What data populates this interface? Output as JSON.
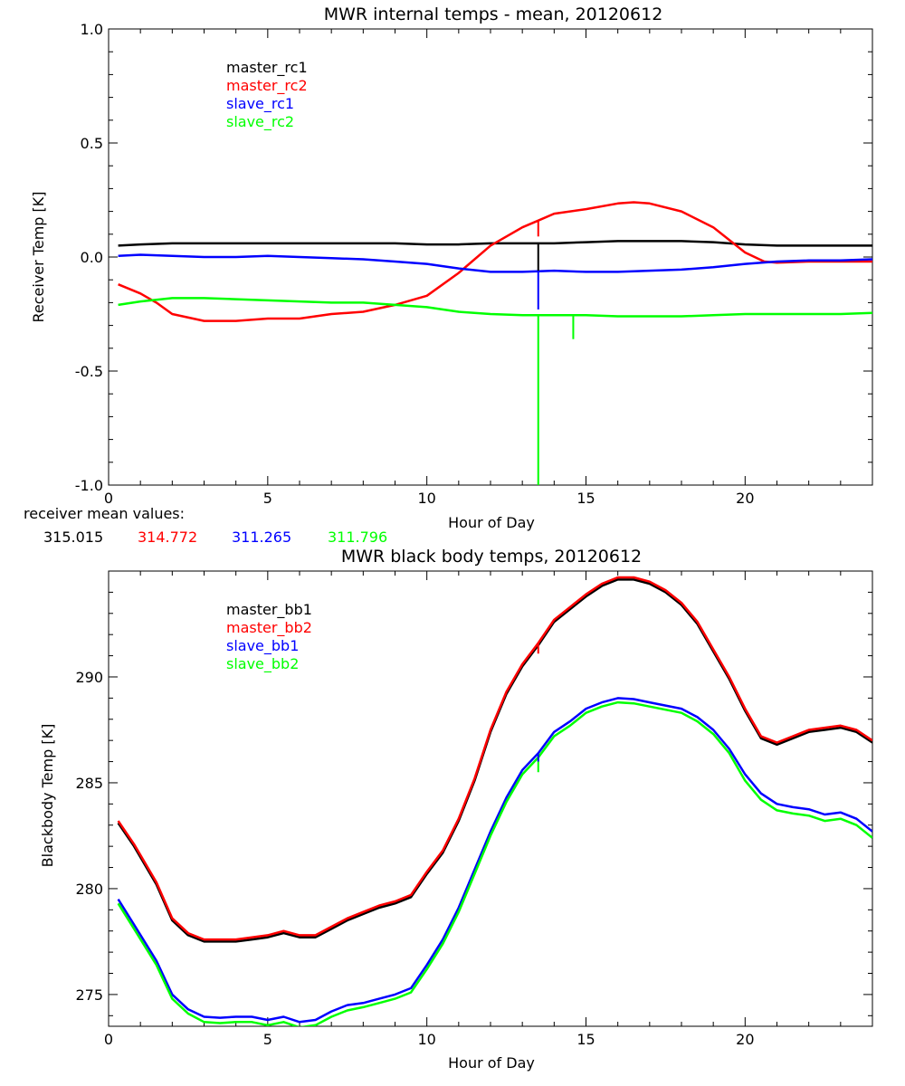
{
  "chart_data": [
    {
      "type": "line",
      "title": "MWR internal temps - mean, 20120612",
      "xlabel": "Hour of Day",
      "ylabel": "Receiver Temp [K]",
      "xlim": [
        0,
        24
      ],
      "ylim": [
        -1.0,
        1.0
      ],
      "xticks": [
        0,
        5,
        10,
        15,
        20
      ],
      "yticks": [
        1.0,
        0.5,
        0.0,
        -0.5,
        -1.0
      ],
      "ytick_labels": [
        "1.0",
        "0.5",
        "0.0",
        "-0.5",
        "-1.0"
      ],
      "legend_position": "top-left",
      "grid": false,
      "series": [
        {
          "name": "master_rc1",
          "color": "#000000",
          "x": [
            0.3,
            1,
            2,
            3,
            4,
            5,
            6,
            7,
            8,
            9,
            10,
            11,
            12,
            13,
            14,
            15,
            16,
            17,
            18,
            19,
            20,
            21,
            22,
            23,
            24
          ],
          "y": [
            0.05,
            0.055,
            0.06,
            0.06,
            0.06,
            0.06,
            0.06,
            0.06,
            0.06,
            0.06,
            0.055,
            0.055,
            0.06,
            0.06,
            0.06,
            0.065,
            0.07,
            0.07,
            0.07,
            0.065,
            0.055,
            0.05,
            0.05,
            0.05,
            0.05
          ]
        },
        {
          "name": "master_rc2",
          "color": "#ff0000",
          "x": [
            0.3,
            1,
            1.5,
            2,
            3,
            4,
            5,
            6,
            7,
            8,
            9,
            10,
            11,
            12,
            13,
            13.5,
            14,
            15,
            16,
            16.5,
            17,
            18,
            19,
            20,
            20.6,
            21,
            22,
            23,
            24
          ],
          "y": [
            -0.12,
            -0.16,
            -0.2,
            -0.25,
            -0.28,
            -0.28,
            -0.27,
            -0.27,
            -0.25,
            -0.24,
            -0.21,
            -0.17,
            -0.07,
            0.05,
            0.13,
            0.16,
            0.19,
            0.21,
            0.235,
            0.24,
            0.235,
            0.2,
            0.13,
            0.02,
            -0.02,
            -0.025,
            -0.02,
            -0.02,
            -0.02
          ]
        },
        {
          "name": "slave_rc1",
          "color": "#0000ff",
          "x": [
            0.3,
            1,
            2,
            3,
            4,
            5,
            6,
            7,
            8,
            9,
            10,
            11,
            12,
            13,
            14,
            15,
            16,
            17,
            18,
            19,
            20,
            21,
            22,
            23,
            24
          ],
          "y": [
            0.005,
            0.01,
            0.005,
            0.0,
            0.0,
            0.005,
            0.0,
            -0.005,
            -0.01,
            -0.02,
            -0.03,
            -0.05,
            -0.065,
            -0.065,
            -0.06,
            -0.065,
            -0.065,
            -0.06,
            -0.055,
            -0.045,
            -0.03,
            -0.02,
            -0.015,
            -0.015,
            -0.01
          ]
        },
        {
          "name": "slave_rc2",
          "color": "#00ff00",
          "x": [
            0.3,
            1,
            2,
            3,
            4,
            5,
            6,
            7,
            8,
            9,
            10,
            11,
            12,
            13,
            14,
            15,
            16,
            17,
            18,
            19,
            20,
            21,
            22,
            23,
            24
          ],
          "y": [
            -0.21,
            -0.195,
            -0.18,
            -0.18,
            -0.185,
            -0.19,
            -0.195,
            -0.2,
            -0.2,
            -0.21,
            -0.22,
            -0.24,
            -0.25,
            -0.255,
            -0.255,
            -0.255,
            -0.26,
            -0.26,
            -0.26,
            -0.255,
            -0.25,
            -0.25,
            -0.25,
            -0.25,
            -0.245
          ]
        }
      ],
      "spikes": [
        {
          "series": "slave_rc2",
          "x": 13.5,
          "y_from": -0.25,
          "y_to": -1.0
        },
        {
          "series": "slave_rc1",
          "x": 13.5,
          "y_from": -0.065,
          "y_to": -0.23
        },
        {
          "series": "master_rc1",
          "x": 13.5,
          "y_from": 0.06,
          "y_to": -0.06
        },
        {
          "series": "master_rc2",
          "x": 13.5,
          "y_from": 0.16,
          "y_to": 0.09
        },
        {
          "series": "slave_rc2",
          "x": 14.6,
          "y_from": -0.26,
          "y_to": -0.36
        }
      ]
    },
    {
      "type": "line",
      "title": "MWR black body temps, 20120612",
      "xlabel": "Hour of Day",
      "ylabel": "Blackbody Temp [K]",
      "xlim": [
        0,
        24
      ],
      "ylim": [
        273.5,
        295
      ],
      "xticks": [
        0,
        5,
        10,
        15,
        20
      ],
      "yticks": [
        275,
        280,
        285,
        290
      ],
      "legend_position": "top-left",
      "grid": false,
      "series": [
        {
          "name": "master_bb1",
          "color": "#000000",
          "x": [
            0.3,
            0.8,
            1.5,
            2,
            2.5,
            3,
            3.5,
            4,
            4.5,
            5,
            5.5,
            6,
            6.5,
            7,
            7.5,
            8,
            8.5,
            9,
            9.5,
            10,
            10.5,
            11,
            11.5,
            12,
            12.5,
            13,
            13.5,
            14,
            14.5,
            15,
            15.5,
            16,
            16.5,
            17,
            17.5,
            18,
            18.5,
            19,
            19.5,
            20,
            20.5,
            21,
            21.5,
            22,
            22.5,
            23,
            23.5,
            24
          ],
          "y": [
            283.1,
            282.0,
            280.2,
            278.5,
            277.8,
            277.5,
            277.5,
            277.5,
            277.6,
            277.7,
            277.9,
            277.7,
            277.7,
            278.1,
            278.5,
            278.8,
            279.1,
            279.3,
            279.6,
            280.7,
            281.7,
            283.2,
            285.1,
            287.4,
            289.2,
            290.5,
            291.5,
            292.6,
            293.2,
            293.8,
            294.3,
            294.6,
            294.6,
            294.4,
            294.0,
            293.4,
            292.5,
            291.2,
            289.9,
            288.4,
            287.1,
            286.8,
            287.1,
            287.4,
            287.5,
            287.6,
            287.4,
            286.9
          ]
        },
        {
          "name": "master_bb2",
          "color": "#ff0000",
          "x": [
            0.3,
            0.8,
            1.5,
            2,
            2.5,
            3,
            3.5,
            4,
            4.5,
            5,
            5.5,
            6,
            6.5,
            7,
            7.5,
            8,
            8.5,
            9,
            9.5,
            10,
            10.5,
            11,
            11.5,
            12,
            12.5,
            13,
            13.5,
            14,
            14.5,
            15,
            15.5,
            16,
            16.5,
            17,
            17.5,
            18,
            18.5,
            19,
            19.5,
            20,
            20.5,
            21,
            21.5,
            22,
            22.5,
            23,
            23.5,
            24
          ],
          "y": [
            283.2,
            282.1,
            280.3,
            278.6,
            277.9,
            277.6,
            277.6,
            277.6,
            277.7,
            277.8,
            278.0,
            277.8,
            277.8,
            278.2,
            278.6,
            278.9,
            279.2,
            279.4,
            279.7,
            280.8,
            281.8,
            283.3,
            285.2,
            287.5,
            289.3,
            290.6,
            291.6,
            292.7,
            293.3,
            293.9,
            294.4,
            294.7,
            294.7,
            294.5,
            294.1,
            293.5,
            292.6,
            291.3,
            290.0,
            288.5,
            287.2,
            286.9,
            287.2,
            287.5,
            287.6,
            287.7,
            287.5,
            287.0
          ]
        },
        {
          "name": "slave_bb1",
          "color": "#0000ff",
          "x": [
            0.3,
            0.8,
            1.5,
            2,
            2.5,
            3,
            3.5,
            4,
            4.5,
            5,
            5.5,
            6,
            6.5,
            7,
            7.5,
            8,
            8.5,
            9,
            9.5,
            10,
            10.5,
            11,
            11.5,
            12,
            12.5,
            13,
            13.5,
            14,
            14.5,
            15,
            15.5,
            16,
            16.5,
            17,
            17.5,
            18,
            18.5,
            19,
            19.5,
            20,
            20.5,
            21,
            21.5,
            22,
            22.5,
            23,
            23.5,
            24
          ],
          "y": [
            279.5,
            278.3,
            276.6,
            275.0,
            274.3,
            273.95,
            273.9,
            273.95,
            273.95,
            273.8,
            273.95,
            273.7,
            273.8,
            274.2,
            274.5,
            274.6,
            274.8,
            275.0,
            275.3,
            276.4,
            277.6,
            279.1,
            280.9,
            282.7,
            284.3,
            285.6,
            286.4,
            287.4,
            287.9,
            288.5,
            288.8,
            289.0,
            288.95,
            288.8,
            288.65,
            288.5,
            288.1,
            287.5,
            286.6,
            285.4,
            284.5,
            284.0,
            283.85,
            283.75,
            283.5,
            283.6,
            283.3,
            282.7
          ]
        },
        {
          "name": "slave_bb2",
          "color": "#00ff00",
          "x": [
            0.3,
            0.8,
            1.5,
            2,
            2.5,
            3,
            3.5,
            4,
            4.5,
            5,
            5.5,
            6,
            6.5,
            7,
            7.5,
            8,
            8.5,
            9,
            9.5,
            10,
            10.5,
            11,
            11.5,
            12,
            12.5,
            13,
            13.5,
            14,
            14.5,
            15,
            15.5,
            16,
            16.5,
            17,
            17.5,
            18,
            18.5,
            19,
            19.5,
            20,
            20.5,
            21,
            21.5,
            22,
            22.5,
            23,
            23.5,
            24
          ],
          "y": [
            279.3,
            278.1,
            276.4,
            274.8,
            274.1,
            273.7,
            273.65,
            273.7,
            273.7,
            273.55,
            273.7,
            273.45,
            273.55,
            273.95,
            274.25,
            274.4,
            274.6,
            274.8,
            275.1,
            276.2,
            277.4,
            278.9,
            280.7,
            282.5,
            284.1,
            285.4,
            286.2,
            287.2,
            287.7,
            288.3,
            288.6,
            288.8,
            288.75,
            288.6,
            288.45,
            288.3,
            287.9,
            287.3,
            286.4,
            285.1,
            284.2,
            283.7,
            283.55,
            283.45,
            283.2,
            283.3,
            283.0,
            282.4
          ]
        }
      ],
      "spikes": [
        {
          "series": "master_bb2",
          "x": 13.5,
          "y_from": 291.6,
          "y_to": 291.1
        },
        {
          "series": "slave_bb2",
          "x": 13.5,
          "y_from": 286.2,
          "y_to": 285.5
        },
        {
          "series": "slave_bb1",
          "x": 13.5,
          "y_from": 286.4,
          "y_to": 286.0
        }
      ]
    }
  ],
  "receiver_mean": {
    "label": "receiver mean values:",
    "values": [
      {
        "text": "315.015",
        "color": "#000000"
      },
      {
        "text": "314.772",
        "color": "#ff0000"
      },
      {
        "text": "311.265",
        "color": "#0000ff"
      },
      {
        "text": "311.796",
        "color": "#00ff00"
      }
    ]
  }
}
